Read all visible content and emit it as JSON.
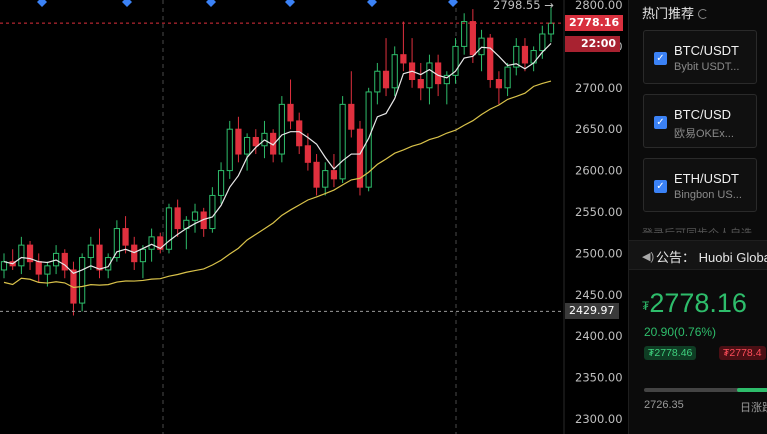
{
  "chart_data": {
    "type": "candlestick",
    "y_ticks": [
      2800,
      2750,
      2700,
      2650,
      2600,
      2550,
      2500,
      2450,
      2400,
      2350,
      2300
    ],
    "y_tick_labels": [
      "2800.00",
      "2750.00",
      "2700.00",
      "2650.00",
      "2600.00",
      "2550.00",
      "2500.00",
      "2450.00",
      "2400.00",
      "2350.00",
      "2300.00"
    ],
    "ylim": [
      2280,
      2805
    ],
    "high_label": "2798.55",
    "current_price": 2778.16,
    "current_price_label": "2778.16",
    "countdown_label": "22:00",
    "crosshair_price": 2429.97,
    "crosshair_price_label": "2429.97",
    "ohlc": [
      [
        2480,
        2500,
        2470,
        2490
      ],
      [
        2490,
        2505,
        2480,
        2485
      ],
      [
        2485,
        2520,
        2475,
        2510
      ],
      [
        2510,
        2515,
        2480,
        2490
      ],
      [
        2490,
        2500,
        2465,
        2475
      ],
      [
        2475,
        2490,
        2460,
        2485
      ],
      [
        2485,
        2510,
        2475,
        2500
      ],
      [
        2500,
        2505,
        2470,
        2480
      ],
      [
        2480,
        2490,
        2425,
        2440
      ],
      [
        2440,
        2500,
        2430,
        2495
      ],
      [
        2495,
        2520,
        2480,
        2510
      ],
      [
        2510,
        2530,
        2470,
        2480
      ],
      [
        2480,
        2500,
        2470,
        2495
      ],
      [
        2495,
        2540,
        2490,
        2530
      ],
      [
        2530,
        2545,
        2500,
        2510
      ],
      [
        2510,
        2520,
        2480,
        2490
      ],
      [
        2490,
        2510,
        2470,
        2505
      ],
      [
        2505,
        2530,
        2490,
        2520
      ],
      [
        2520,
        2525,
        2500,
        2505
      ],
      [
        2505,
        2560,
        2500,
        2555
      ],
      [
        2555,
        2565,
        2520,
        2530
      ],
      [
        2530,
        2545,
        2505,
        2540
      ],
      [
        2540,
        2560,
        2525,
        2550
      ],
      [
        2550,
        2555,
        2520,
        2530
      ],
      [
        2530,
        2580,
        2525,
        2570
      ],
      [
        2570,
        2610,
        2560,
        2600
      ],
      [
        2600,
        2660,
        2590,
        2650
      ],
      [
        2650,
        2665,
        2610,
        2620
      ],
      [
        2620,
        2645,
        2600,
        2640
      ],
      [
        2640,
        2650,
        2620,
        2630
      ],
      [
        2630,
        2660,
        2615,
        2645
      ],
      [
        2645,
        2650,
        2610,
        2620
      ],
      [
        2620,
        2690,
        2610,
        2680
      ],
      [
        2680,
        2710,
        2650,
        2660
      ],
      [
        2660,
        2670,
        2620,
        2630
      ],
      [
        2630,
        2645,
        2600,
        2610
      ],
      [
        2610,
        2620,
        2570,
        2580
      ],
      [
        2580,
        2610,
        2570,
        2600
      ],
      [
        2600,
        2620,
        2580,
        2590
      ],
      [
        2590,
        2690,
        2585,
        2680
      ],
      [
        2680,
        2720,
        2640,
        2650
      ],
      [
        2650,
        2660,
        2570,
        2580
      ],
      [
        2580,
        2700,
        2575,
        2695
      ],
      [
        2695,
        2730,
        2680,
        2720
      ],
      [
        2720,
        2760,
        2690,
        2700
      ],
      [
        2700,
        2750,
        2690,
        2740
      ],
      [
        2740,
        2780,
        2720,
        2730
      ],
      [
        2730,
        2760,
        2700,
        2710
      ],
      [
        2710,
        2730,
        2685,
        2700
      ],
      [
        2700,
        2740,
        2680,
        2730
      ],
      [
        2730,
        2740,
        2690,
        2705
      ],
      [
        2705,
        2720,
        2680,
        2715
      ],
      [
        2715,
        2760,
        2705,
        2750
      ],
      [
        2750,
        2790,
        2740,
        2780
      ],
      [
        2780,
        2795,
        2730,
        2740
      ],
      [
        2740,
        2770,
        2720,
        2760
      ],
      [
        2760,
        2765,
        2700,
        2710
      ],
      [
        2710,
        2720,
        2680,
        2700
      ],
      [
        2700,
        2730,
        2690,
        2725
      ],
      [
        2725,
        2760,
        2715,
        2750
      ],
      [
        2750,
        2760,
        2720,
        2730
      ],
      [
        2730,
        2750,
        2720,
        2745
      ],
      [
        2745,
        2775,
        2735,
        2765
      ],
      [
        2765,
        2798,
        2755,
        2778
      ]
    ]
  },
  "panel": {
    "title": "热门推荐",
    "recommendations": [
      {
        "symbol": "BTC/USDT",
        "exchange": "Bybit USDT..."
      },
      {
        "symbol": "BTC/USD",
        "exchange": "欧易OKEx..."
      },
      {
        "symbol": "ETH/USDT",
        "exchange": "Bingbon US..."
      }
    ],
    "faded_text": "登录后可同步个人自选",
    "announcement_label": "公告：",
    "announcement_text": "Huobi Global",
    "price_currency": "₮",
    "price": "2778.16",
    "change": "20.90(0.76%)",
    "buy_price": "₮2778.46",
    "sell_price": "₮2778.4",
    "range_low": "2726.35",
    "range_label": "日涨跌",
    "range_fill_fraction": 0.25,
    "colors": {
      "up": "#2ebd6b",
      "down": "#e0303e",
      "accent": "#3b82f6"
    }
  }
}
